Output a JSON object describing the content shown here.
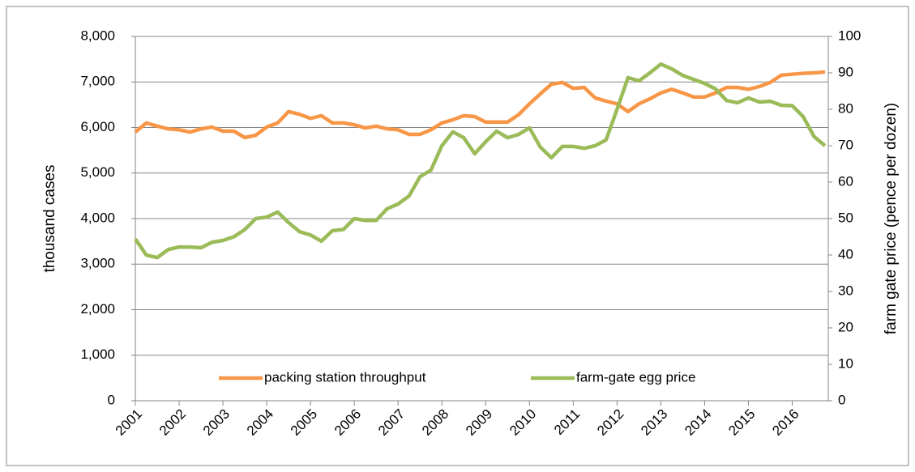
{
  "chart_data": {
    "type": "line",
    "y_label": "thousand cases",
    "y2_label": "farm gate price (pence per dozen)",
    "categories": [
      "2001",
      null,
      null,
      null,
      "2002",
      null,
      null,
      null,
      "2003",
      null,
      null,
      null,
      "2004",
      null,
      null,
      null,
      "2005",
      null,
      null,
      null,
      "2006",
      null,
      null,
      null,
      "2007",
      null,
      null,
      null,
      "2008",
      null,
      null,
      null,
      "2009",
      null,
      null,
      null,
      "2010",
      null,
      null,
      null,
      "2011",
      null,
      null,
      null,
      "2012",
      null,
      null,
      null,
      "2013",
      null,
      null,
      null,
      "2014",
      null,
      null,
      null,
      "2015",
      null,
      null,
      null,
      "2016",
      null,
      null,
      null
    ],
    "series": [
      {
        "name": "packing station throughput",
        "color": "#f79646",
        "axis": "y",
        "values": [
          5900,
          6100,
          6030,
          5970,
          5950,
          5900,
          5970,
          6010,
          5920,
          5920,
          5780,
          5830,
          6010,
          6100,
          6350,
          6290,
          6200,
          6260,
          6100,
          6100,
          6060,
          5990,
          6030,
          5970,
          5950,
          5850,
          5850,
          5950,
          6100,
          6170,
          6260,
          6240,
          6120,
          6120,
          6120,
          6280,
          6520,
          6740,
          6950,
          6990,
          6860,
          6880,
          6650,
          6580,
          6520,
          6350,
          6520,
          6630,
          6760,
          6840,
          6760,
          6670,
          6670,
          6760,
          6880,
          6880,
          6840,
          6900,
          6990,
          7150,
          7170,
          7190,
          7200,
          7220
        ]
      },
      {
        "name": "farm-gate egg price",
        "color": "#9bbb59",
        "axis": "y2",
        "values": [
          44.4,
          40,
          39.3,
          41.5,
          42.2,
          42.2,
          42,
          43.5,
          44,
          45,
          47,
          50,
          50.4,
          51.8,
          48.9,
          46.4,
          45.5,
          43.8,
          46.7,
          47,
          50,
          49.5,
          49.5,
          52.7,
          54,
          56.2,
          61.5,
          63.3,
          70,
          73.8,
          72.2,
          67.8,
          71.1,
          74,
          72.2,
          73.1,
          74.9,
          69.6,
          66.7,
          69.8,
          69.8,
          69.3,
          70,
          71.6,
          80,
          88.7,
          87.8,
          90,
          92.4,
          91.1,
          89.3,
          88.2,
          87.1,
          85.6,
          82.4,
          81.8,
          83.1,
          82,
          82.2,
          81.1,
          81,
          78,
          72.5,
          70
        ]
      }
    ],
    "ylim": [
      0,
      8000
    ],
    "yticks": [
      0,
      {
        "value": 1000,
        "label": "1,000"
      },
      {
        "value": 2000,
        "label": "2,000"
      },
      {
        "value": 3000,
        "label": "3,000"
      },
      {
        "value": 4000,
        "label": "4,000"
      },
      {
        "value": 5000,
        "label": "5,000"
      },
      {
        "value": 6000,
        "label": "6,000"
      },
      {
        "value": 7000,
        "label": "7,000"
      },
      {
        "value": 8000,
        "label": "8,000"
      }
    ],
    "y2lim": [
      0,
      100
    ],
    "y2ticks": [
      0,
      10,
      20,
      30,
      40,
      50,
      60,
      70,
      80,
      90,
      100
    ],
    "grid": true,
    "legend": "bottom"
  }
}
